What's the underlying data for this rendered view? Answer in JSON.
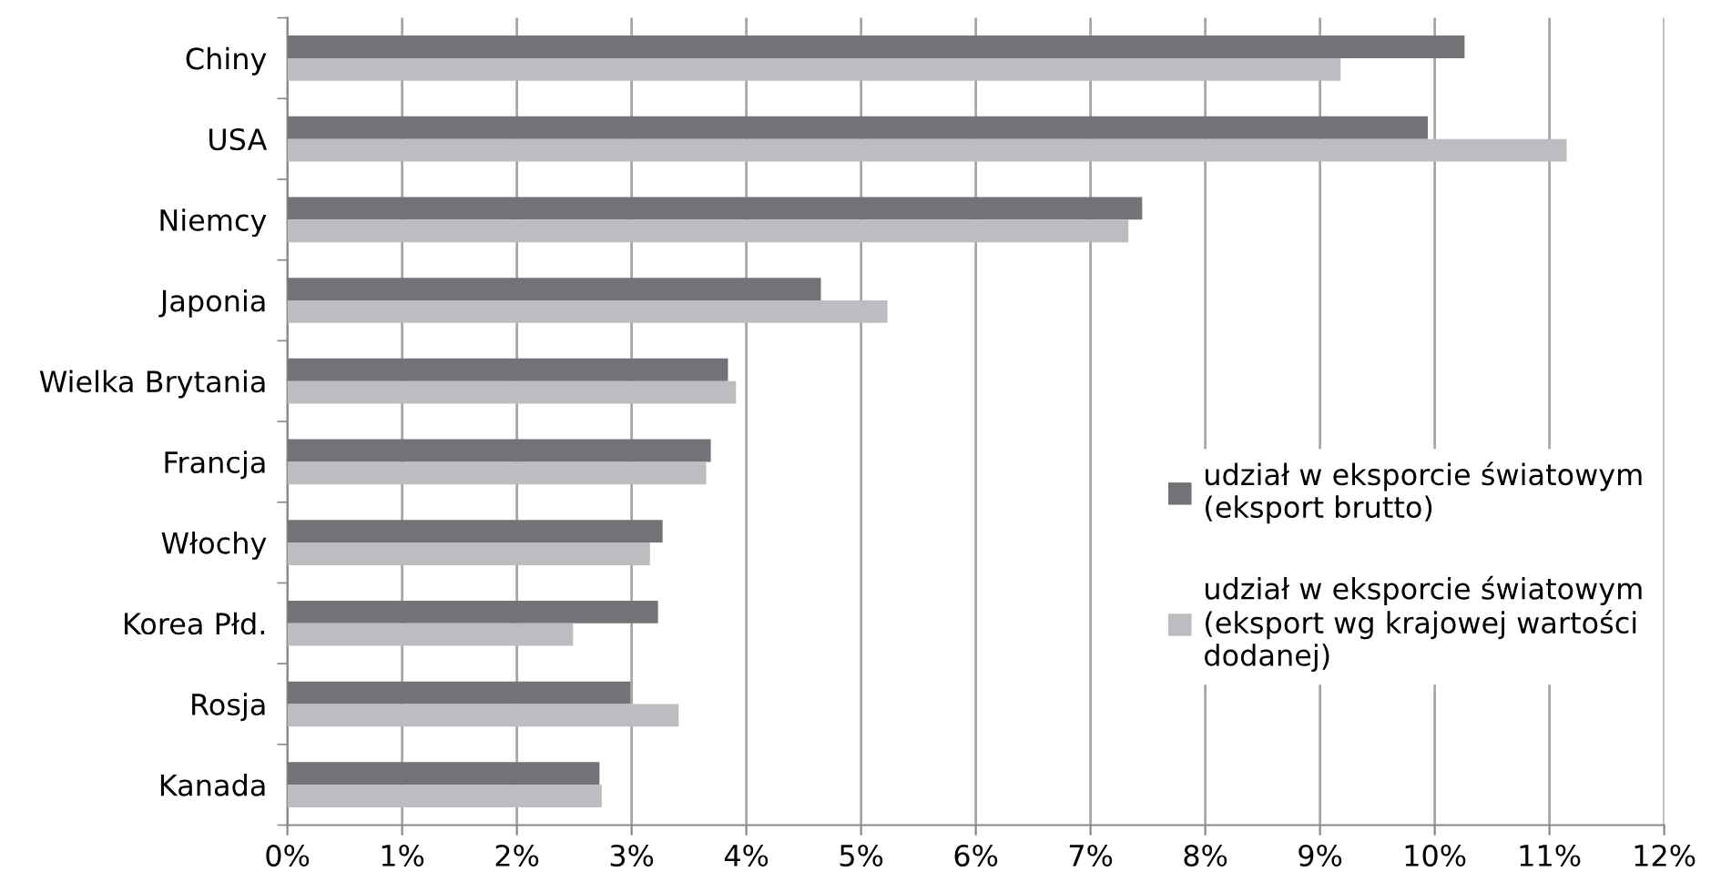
{
  "chart_data": {
    "type": "bar",
    "orientation": "horizontal",
    "categories": [
      "Chiny",
      "USA",
      "Niemcy",
      "Japonia",
      "Wielka Brytania",
      "Francja",
      "Włochy",
      "Korea Płd.",
      "Rosja",
      "Kanada"
    ],
    "series": [
      {
        "name": "udział w eksporcie światowym\n(eksport brutto)",
        "color": "#737377",
        "values": [
          10.26,
          9.94,
          7.45,
          4.65,
          3.84,
          3.69,
          3.27,
          3.23,
          2.99,
          2.72
        ]
      },
      {
        "name": "udział w eksporcie światowym\n(eksport wg krajowej wartości\ndodanej)",
        "color": "#bcbdc0",
        "values": [
          9.18,
          11.15,
          7.33,
          5.23,
          3.91,
          3.65,
          3.16,
          2.49,
          3.41,
          2.74
        ]
      }
    ],
    "xlim": [
      0,
      12
    ],
    "xticks": [
      {
        "value": 0,
        "label": "0%"
      },
      {
        "value": 1,
        "label": "1%"
      },
      {
        "value": 2,
        "label": "2%"
      },
      {
        "value": 3,
        "label": "3%"
      },
      {
        "value": 4,
        "label": "4%"
      },
      {
        "value": 5,
        "label": "5%"
      },
      {
        "value": 6,
        "label": "6%"
      },
      {
        "value": 7,
        "label": "7%"
      },
      {
        "value": 8,
        "label": "8%"
      },
      {
        "value": 9,
        "label": "9%"
      },
      {
        "value": 10,
        "label": "10%"
      },
      {
        "value": 11,
        "label": "11%"
      },
      {
        "value": 12,
        "label": "12%"
      }
    ],
    "grid": "x",
    "legend": "right"
  }
}
